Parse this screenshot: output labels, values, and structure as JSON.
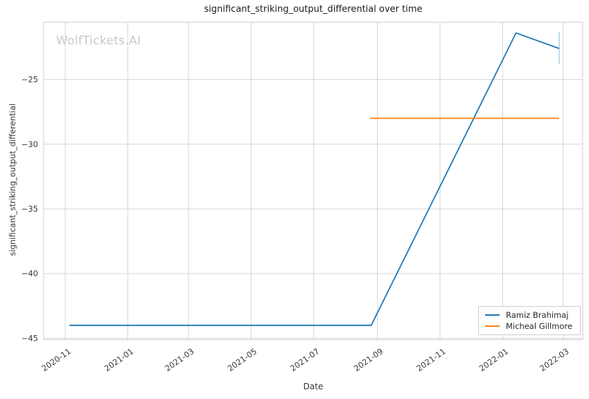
{
  "watermark": "WolfTickets.AI",
  "chart_data": {
    "type": "line",
    "title": "significant_striking_output_differential over time",
    "xlabel": "Date",
    "ylabel": "significant_striking_output_differential",
    "grid": true,
    "background_color": "#ffffff",
    "grid_color": "#d5d5d5",
    "border_color": "#cccccc",
    "tick_label_color": "#3a3a3a",
    "legend_position": "lower right",
    "x_range": [
      "2020-10-11",
      "2022-03-20"
    ],
    "y_range": [
      -45.11,
      -20.57
    ],
    "x_ticks": [
      {
        "label": "2020-11",
        "date": "2020-11-01"
      },
      {
        "label": "2021-01",
        "date": "2021-01-01"
      },
      {
        "label": "2021-03",
        "date": "2021-03-01"
      },
      {
        "label": "2021-05",
        "date": "2021-05-01"
      },
      {
        "label": "2021-07",
        "date": "2021-07-01"
      },
      {
        "label": "2021-09",
        "date": "2021-09-01"
      },
      {
        "label": "2021-11",
        "date": "2021-11-01"
      },
      {
        "label": "2022-01",
        "date": "2022-01-01"
      },
      {
        "label": "2022-03",
        "date": "2022-03-01"
      }
    ],
    "y_ticks": [
      {
        "label": "−25",
        "value": -25
      },
      {
        "label": "−30",
        "value": -30
      },
      {
        "label": "−35",
        "value": -35
      },
      {
        "label": "−40",
        "value": -40
      },
      {
        "label": "−45",
        "value": -45
      }
    ],
    "series": [
      {
        "name": "Ramiz Brahimaj",
        "color": "#1f77b4",
        "points": [
          {
            "date": "2020-11-05",
            "value": -44.0
          },
          {
            "date": "2021-08-26",
            "value": -44.0
          },
          {
            "date": "2022-01-14",
            "value": -21.4
          },
          {
            "date": "2022-02-25",
            "value": -22.6
          }
        ],
        "error_bar": {
          "date": "2022-02-25",
          "low": -23.8,
          "high": -21.3
        }
      },
      {
        "name": "Micheal Gillmore",
        "color": "#ff7f0e",
        "points": [
          {
            "date": "2021-08-25",
            "value": -28.0
          },
          {
            "date": "2022-02-25",
            "value": -28.0
          }
        ]
      }
    ]
  }
}
